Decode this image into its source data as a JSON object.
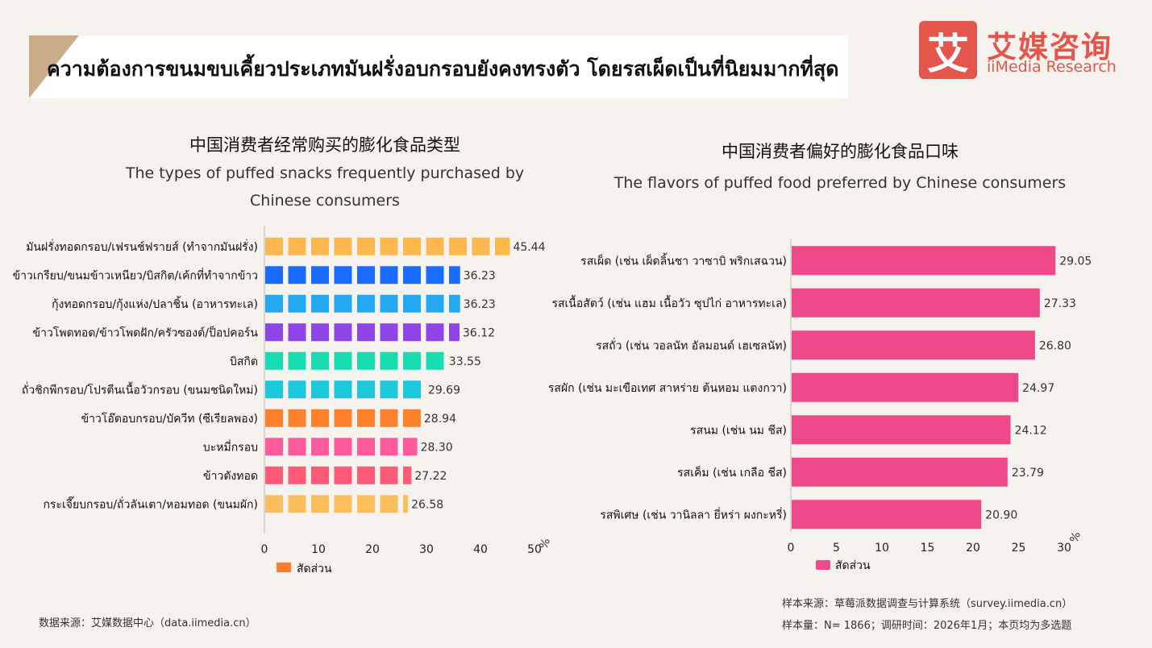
{
  "banner": {
    "title": "ความต้องการขนมขบเคี้ยวประเภทมันฝรั่งอบกรอบยังคงทรงตัว โดยรสเผ็ดเป็นที่นิยมมากที่สุด"
  },
  "logo": {
    "glyph": "艾",
    "cn": "艾媒咨询",
    "en": "iiMedia Research",
    "color": "#e4564b"
  },
  "footer": {
    "left_source": "数据来源：艾媒数据中心（data.iimedia.cn）",
    "right_source": "样本来源：草莓派数据调查与计算系统（survey.iimedia.cn）",
    "right_sample": "样本量：N= 1866；调研时间：2026年1月；本页均为多选题"
  },
  "chart_data": [
    {
      "type": "bar",
      "orientation": "horizontal",
      "title": "中国消费者经常购买的膨化食品类型",
      "subtitle_line1": "The types of puffed snacks frequently purchased by",
      "subtitle_line2": "Chinese consumers",
      "unit": "%",
      "legend": "สัดส่วน",
      "legend_color": "#ff7f2a",
      "xlim": [
        0,
        50
      ],
      "ticks": [
        0,
        10,
        20,
        30,
        40,
        50
      ],
      "bar_style": "segmented",
      "categories": [
        "มันฝรั่งทอดกรอบ/เฟรนช์ฟรายส์ (ทำจากมันฝรั่ง)",
        "ข้าวเกรียบ/ขนมข้าวเหนียว/บิสกิต/เค้กที่ทำจากข้าว",
        "กุ้งทอดกรอบ/กุ้งแห่ง/ปลาชิ้น (อาหารทะเล)",
        "ข้าวโพดทอด/ข้าวโพดฝัก/ครัวซองต์/ป็อปคอร์น",
        "บิสกิต",
        "ถั่วชิกพีกรอบ/โปรตีนเนื้อวัวกรอบ (ขนมชนิดใหม่)",
        "ข้าวโอ๊ตอบกรอบ/บัควีท (ซีเรียลพอง)",
        "บะหมี่กรอบ",
        "ข้าวตังทอด",
        "กระเจี๊ยบกรอบ/ถั่วลันเตา/หอมทอด (ขนมผัก)"
      ],
      "values": [
        45.44,
        36.23,
        36.23,
        36.12,
        33.55,
        29.69,
        28.94,
        28.3,
        27.22,
        26.58
      ],
      "value_labels": [
        "45.44",
        "36.23",
        "36.23",
        "36.12",
        "33.55",
        "29.69",
        "28.94",
        "28.30",
        "27.22",
        "26.58"
      ],
      "colors": [
        "#ffb84d",
        "#1a6cff",
        "#23a8f2",
        "#8e44e8",
        "#17dcb0",
        "#1cc8dc",
        "#ff7f2a",
        "#ff5a9c",
        "#ff5a78",
        "#ffbe5c"
      ]
    },
    {
      "type": "bar",
      "orientation": "horizontal",
      "title": "中国消费者偏好的膨化食品口味",
      "subtitle_line1": "The flavors of puffed food preferred by Chinese consumers",
      "unit": "%",
      "legend": "สัดส่วน",
      "legend_color": "#f0498a",
      "xlim": [
        0,
        30
      ],
      "ticks": [
        0,
        5,
        10,
        15,
        20,
        25,
        30
      ],
      "bar_style": "solid",
      "bar_color": "#f0498a",
      "categories": [
        "รสเผ็ด (เช่น เผ็ดลิ้นชา วาซาบิ พริกเสฉวน)",
        "รสเนื้อสัตว์ (เช่น แฮม เนื้อวัว ซุปไก่ อาหารทะเล)",
        "รสถั่ว (เช่น วอลนัท อัลมอนด์ เฮเซลนัท)",
        "รสผัก (เช่น มะเขือเทศ สาหร่าย ต้นหอม แตงกวา)",
        "รสนม (เช่น นม ชีส)",
        "รสเค็ม (เช่น เกลือ ชีส)",
        "รสพิเศษ (เช่น วานิลลา ยี่หร่า ผงกะหรี่)"
      ],
      "values": [
        29.05,
        27.33,
        26.8,
        24.97,
        24.12,
        23.79,
        20.9
      ],
      "value_labels": [
        "29.05",
        "27.33",
        "26.80",
        "24.97",
        "24.12",
        "23.79",
        "20.90"
      ]
    }
  ]
}
